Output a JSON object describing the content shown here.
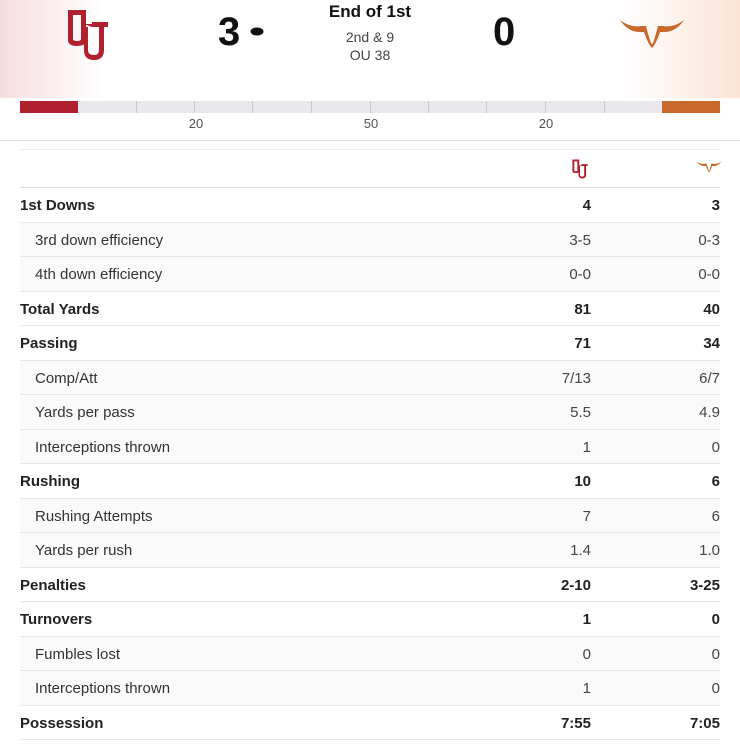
{
  "colors": {
    "home": "#b1202e",
    "away": "#c8682a",
    "field": "#e9e9ec"
  },
  "scoreboard": {
    "home_score": "3",
    "away_score": "0",
    "period": "End of 1st",
    "down_distance": "2nd & 9",
    "ball_spot": "OU 38",
    "home_logo_icon": "oklahoma-ou-logo-icon",
    "away_logo_icon": "texas-longhorn-logo-icon",
    "possession_icon": "football-icon"
  },
  "field": {
    "yard_labels": [
      "20",
      "50",
      "20"
    ]
  },
  "stats": [
    {
      "label": "1st Downs",
      "home": "4",
      "away": "3",
      "type": "main"
    },
    {
      "label": "3rd down efficiency",
      "home": "3-5",
      "away": "0-3",
      "type": "sub"
    },
    {
      "label": "4th down efficiency",
      "home": "0-0",
      "away": "0-0",
      "type": "sub"
    },
    {
      "label": "Total Yards",
      "home": "81",
      "away": "40",
      "type": "main"
    },
    {
      "label": "Passing",
      "home": "71",
      "away": "34",
      "type": "main"
    },
    {
      "label": "Comp/Att",
      "home": "7/13",
      "away": "6/7",
      "type": "sub"
    },
    {
      "label": "Yards per pass",
      "home": "5.5",
      "away": "4.9",
      "type": "sub"
    },
    {
      "label": "Interceptions thrown",
      "home": "1",
      "away": "0",
      "type": "sub"
    },
    {
      "label": "Rushing",
      "home": "10",
      "away": "6",
      "type": "main"
    },
    {
      "label": "Rushing Attempts",
      "home": "7",
      "away": "6",
      "type": "sub"
    },
    {
      "label": "Yards per rush",
      "home": "1.4",
      "away": "1.0",
      "type": "sub"
    },
    {
      "label": "Penalties",
      "home": "2-10",
      "away": "3-25",
      "type": "main"
    },
    {
      "label": "Turnovers",
      "home": "1",
      "away": "0",
      "type": "main"
    },
    {
      "label": "Fumbles lost",
      "home": "0",
      "away": "0",
      "type": "sub"
    },
    {
      "label": "Interceptions thrown",
      "home": "1",
      "away": "0",
      "type": "sub"
    },
    {
      "label": "Possession",
      "home": "7:55",
      "away": "7:05",
      "type": "main"
    }
  ]
}
